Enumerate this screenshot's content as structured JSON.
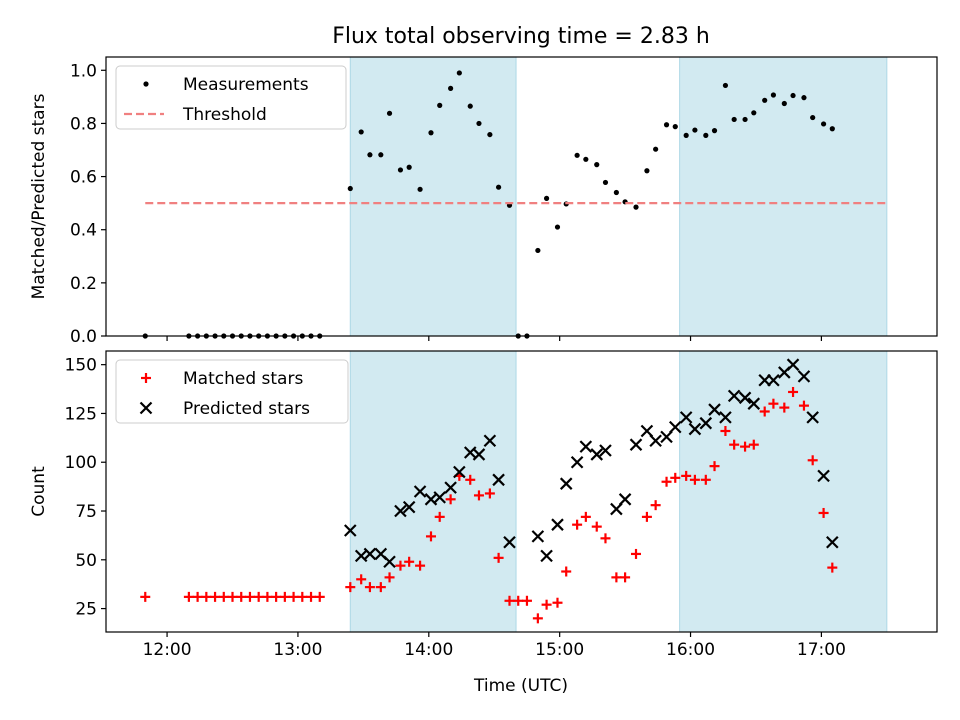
{
  "chart_data": {
    "title": "Flux total observing time = 2.83 h",
    "xlabel": "Time (UTC)",
    "xlim": [
      "11:32",
      "17:53"
    ],
    "xticks": [
      "12:00",
      "13:00",
      "14:00",
      "15:00",
      "16:00",
      "17:00"
    ],
    "shaded_intervals": [
      [
        "13:24",
        "14:40"
      ],
      [
        "15:55",
        "17:30"
      ]
    ],
    "shade_color": "#add8e6",
    "panels": [
      {
        "type": "scatter",
        "ylabel": "Matched/Predicted stars",
        "ylim": [
          0,
          1.05
        ],
        "yticks": [
          "0.0",
          "0.2",
          "0.4",
          "0.6",
          "0.8",
          "1.0"
        ],
        "legend_position": "upper-left",
        "series": [
          {
            "name": "Measurements",
            "marker": "dot",
            "color": "#000000",
            "points": [
              [
                "11:50",
                0.0
              ],
              [
                "12:10",
                0.0
              ],
              [
                "12:14",
                0.0
              ],
              [
                "12:18",
                0.0
              ],
              [
                "12:22",
                0.0
              ],
              [
                "12:26",
                0.0
              ],
              [
                "12:30",
                0.0
              ],
              [
                "12:34",
                0.0
              ],
              [
                "12:38",
                0.0
              ],
              [
                "12:42",
                0.0
              ],
              [
                "12:46",
                0.0
              ],
              [
                "12:50",
                0.0
              ],
              [
                "12:54",
                0.0
              ],
              [
                "12:58",
                0.0
              ],
              [
                "13:02",
                0.0
              ],
              [
                "13:06",
                0.0
              ],
              [
                "13:10",
                0.0
              ],
              [
                "13:24",
                0.555
              ],
              [
                "13:29",
                0.768
              ],
              [
                "13:33",
                0.682
              ],
              [
                "13:38",
                0.682
              ],
              [
                "13:42",
                0.838
              ],
              [
                "13:47",
                0.625
              ],
              [
                "13:51",
                0.635
              ],
              [
                "13:56",
                0.552
              ],
              [
                "14:01",
                0.765
              ],
              [
                "14:05",
                0.868
              ],
              [
                "14:10",
                0.932
              ],
              [
                "14:14",
                0.99
              ],
              [
                "14:19",
                0.865
              ],
              [
                "14:23",
                0.8
              ],
              [
                "14:28",
                0.758
              ],
              [
                "14:32",
                0.56
              ],
              [
                "14:37",
                0.492
              ],
              [
                "14:41",
                0.0
              ],
              [
                "14:45",
                0.0
              ],
              [
                "14:50",
                0.322
              ],
              [
                "14:54",
                0.518
              ],
              [
                "14:59",
                0.41
              ],
              [
                "15:03",
                0.497
              ],
              [
                "15:08",
                0.68
              ],
              [
                "15:12",
                0.665
              ],
              [
                "15:17",
                0.645
              ],
              [
                "15:21",
                0.578
              ],
              [
                "15:26",
                0.54
              ],
              [
                "15:30",
                0.505
              ],
              [
                "15:35",
                0.485
              ],
              [
                "15:40",
                0.622
              ],
              [
                "15:44",
                0.703
              ],
              [
                "15:49",
                0.795
              ],
              [
                "15:53",
                0.788
              ],
              [
                "15:58",
                0.755
              ],
              [
                "16:02",
                0.775
              ],
              [
                "16:07",
                0.755
              ],
              [
                "16:11",
                0.773
              ],
              [
                "16:16",
                0.943
              ],
              [
                "16:20",
                0.815
              ],
              [
                "16:25",
                0.815
              ],
              [
                "16:29",
                0.84
              ],
              [
                "16:34",
                0.887
              ],
              [
                "16:38",
                0.907
              ],
              [
                "16:43",
                0.875
              ],
              [
                "16:47",
                0.905
              ],
              [
                "16:52",
                0.897
              ],
              [
                "16:56",
                0.822
              ],
              [
                "17:01",
                0.798
              ],
              [
                "17:05",
                0.78
              ]
            ]
          },
          {
            "name": "Threshold",
            "line_style": "dashed",
            "color": "#f08080",
            "x_range": [
              "11:50",
              "17:30"
            ],
            "value": 0.5
          }
        ]
      },
      {
        "type": "scatter",
        "ylabel": "Count",
        "ylim": [
          13,
          157
        ],
        "yticks": [
          "25",
          "50",
          "75",
          "100",
          "125",
          "150"
        ],
        "legend_position": "upper-left",
        "series": [
          {
            "name": "Matched stars",
            "marker": "plus",
            "color": "#ff0000",
            "points": [
              [
                "11:50",
                31
              ],
              [
                "12:10",
                31
              ],
              [
                "12:14",
                31
              ],
              [
                "12:18",
                31
              ],
              [
                "12:22",
                31
              ],
              [
                "12:26",
                31
              ],
              [
                "12:30",
                31
              ],
              [
                "12:34",
                31
              ],
              [
                "12:38",
                31
              ],
              [
                "12:42",
                31
              ],
              [
                "12:46",
                31
              ],
              [
                "12:50",
                31
              ],
              [
                "12:54",
                31
              ],
              [
                "12:58",
                31
              ],
              [
                "13:02",
                31
              ],
              [
                "13:06",
                31
              ],
              [
                "13:10",
                31
              ],
              [
                "13:24",
                36
              ],
              [
                "13:29",
                40
              ],
              [
                "13:33",
                36
              ],
              [
                "13:38",
                36
              ],
              [
                "13:42",
                41
              ],
              [
                "13:47",
                47
              ],
              [
                "13:51",
                49
              ],
              [
                "13:56",
                47
              ],
              [
                "14:01",
                62
              ],
              [
                "14:05",
                72
              ],
              [
                "14:10",
                81
              ],
              [
                "14:14",
                93
              ],
              [
                "14:19",
                91
              ],
              [
                "14:23",
                83
              ],
              [
                "14:28",
                84
              ],
              [
                "14:32",
                51
              ],
              [
                "14:37",
                29
              ],
              [
                "14:41",
                29
              ],
              [
                "14:45",
                29
              ],
              [
                "14:50",
                20
              ],
              [
                "14:54",
                27
              ],
              [
                "14:59",
                28
              ],
              [
                "15:03",
                44
              ],
              [
                "15:08",
                68
              ],
              [
                "15:12",
                72
              ],
              [
                "15:17",
                67
              ],
              [
                "15:21",
                61
              ],
              [
                "15:26",
                41
              ],
              [
                "15:30",
                41
              ],
              [
                "15:35",
                53
              ],
              [
                "15:40",
                72
              ],
              [
                "15:44",
                78
              ],
              [
                "15:49",
                90
              ],
              [
                "15:53",
                92
              ],
              [
                "15:58",
                93
              ],
              [
                "16:02",
                91
              ],
              [
                "16:07",
                91
              ],
              [
                "16:11",
                98
              ],
              [
                "16:16",
                116
              ],
              [
                "16:20",
                109
              ],
              [
                "16:25",
                108
              ],
              [
                "16:29",
                109
              ],
              [
                "16:34",
                126
              ],
              [
                "16:38",
                130
              ],
              [
                "16:43",
                128
              ],
              [
                "16:47",
                136
              ],
              [
                "16:52",
                129
              ],
              [
                "16:56",
                101
              ],
              [
                "17:01",
                74
              ],
              [
                "17:05",
                46
              ]
            ]
          },
          {
            "name": "Predicted stars",
            "marker": "x",
            "color": "#000000",
            "points": [
              [
                "13:24",
                65
              ],
              [
                "13:29",
                52
              ],
              [
                "13:33",
                53
              ],
              [
                "13:38",
                53
              ],
              [
                "13:42",
                49
              ],
              [
                "13:47",
                75
              ],
              [
                "13:51",
                77
              ],
              [
                "13:56",
                85
              ],
              [
                "14:01",
                81
              ],
              [
                "14:05",
                82
              ],
              [
                "14:10",
                87
              ],
              [
                "14:14",
                95
              ],
              [
                "14:19",
                105
              ],
              [
                "14:23",
                104
              ],
              [
                "14:28",
                111
              ],
              [
                "14:32",
                91
              ],
              [
                "14:37",
                59
              ],
              [
                "14:50",
                62
              ],
              [
                "14:54",
                52
              ],
              [
                "14:59",
                68
              ],
              [
                "15:03",
                89
              ],
              [
                "15:08",
                100
              ],
              [
                "15:12",
                108
              ],
              [
                "15:17",
                104
              ],
              [
                "15:21",
                106
              ],
              [
                "15:26",
                76
              ],
              [
                "15:30",
                81
              ],
              [
                "15:35",
                109
              ],
              [
                "15:40",
                116
              ],
              [
                "15:44",
                111
              ],
              [
                "15:49",
                113
              ],
              [
                "15:53",
                118
              ],
              [
                "15:58",
                123
              ],
              [
                "16:02",
                117
              ],
              [
                "16:07",
                120
              ],
              [
                "16:11",
                127
              ],
              [
                "16:16",
                123
              ],
              [
                "16:20",
                134
              ],
              [
                "16:25",
                133
              ],
              [
                "16:29",
                130
              ],
              [
                "16:34",
                142
              ],
              [
                "16:38",
                142
              ],
              [
                "16:43",
                146
              ],
              [
                "16:47",
                150
              ],
              [
                "16:52",
                144
              ],
              [
                "16:56",
                123
              ],
              [
                "17:01",
                93
              ],
              [
                "17:05",
                59
              ]
            ]
          }
        ]
      }
    ]
  }
}
